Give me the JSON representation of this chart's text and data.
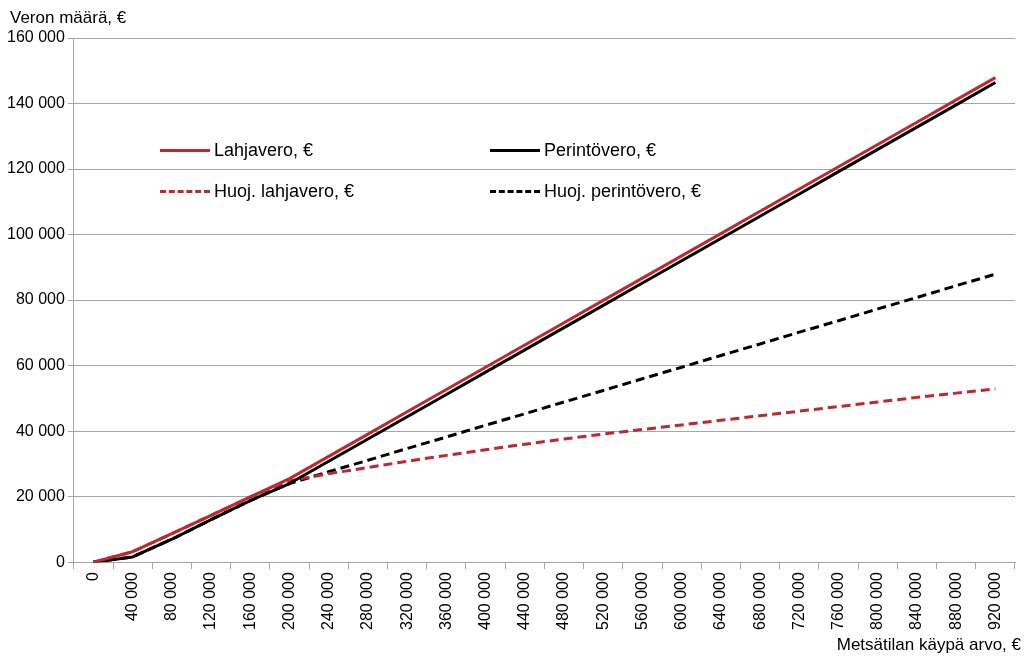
{
  "chart_data": {
    "type": "line",
    "xlabel": "Metsätilan käypä arvo, €",
    "ylabel": "Veron määrä, €",
    "categories": [
      "0",
      "40 000",
      "80 000",
      "120 000",
      "160 000",
      "200 000",
      "240 000",
      "280 000",
      "320 000",
      "360 000",
      "400 000",
      "440 000",
      "480 000",
      "520 000",
      "560 000",
      "600 000",
      "640 000",
      "680 000",
      "720 000",
      "760 000",
      "800 000",
      "840 000",
      "880 000",
      "920 000"
    ],
    "ylim": [
      0,
      160000
    ],
    "yticks": [
      {
        "value": 0,
        "label": "0"
      },
      {
        "value": 20000,
        "label": "20 000"
      },
      {
        "value": 40000,
        "label": "40 000"
      },
      {
        "value": 60000,
        "label": "60 000"
      },
      {
        "value": 80000,
        "label": "80 000"
      },
      {
        "value": 100000,
        "label": "100 000"
      },
      {
        "value": 120000,
        "label": "120 000"
      },
      {
        "value": 140000,
        "label": "140 000"
      },
      {
        "value": 160000,
        "label": "160 000"
      }
    ],
    "grid": "y",
    "legend": "top left",
    "marker": "none",
    "series": [
      {
        "name": "Lahjavero, €",
        "color": "#c0282d",
        "line_style": "solid",
        "values": [
          0,
          3200,
          8700,
          14300,
          19900,
          25500,
          32300,
          39100,
          45900,
          52700,
          59500,
          66300,
          73100,
          79900,
          86700,
          93500,
          100300,
          107100,
          113900,
          120700,
          127500,
          134300,
          141100,
          147900
        ]
      },
      {
        "name": "Perintövero, €",
        "color": "#000000",
        "line_style": "solid",
        "values": [
          0,
          1600,
          7000,
          13000,
          18800,
          24000,
          30800,
          37600,
          44400,
          51200,
          58000,
          64800,
          71600,
          78400,
          85200,
          92000,
          98800,
          105600,
          112400,
          119200,
          126000,
          132800,
          139600,
          146400
        ]
      },
      {
        "name": "Huoj. lahjavero, €",
        "color": "#c0282d",
        "line_style": "dashed",
        "values": [
          0,
          3200,
          8700,
          14300,
          19900,
          24800,
          27000,
          28900,
          30800,
          32600,
          34300,
          36000,
          37600,
          39100,
          40500,
          41900,
          43300,
          44700,
          46100,
          47500,
          48900,
          50300,
          51600,
          52900
        ]
      },
      {
        "name": "Huoj. perintövero, €",
        "color": "#000000",
        "line_style": "dashed",
        "values": [
          0,
          1600,
          7000,
          13000,
          18800,
          24000,
          27600,
          31100,
          34700,
          38200,
          41800,
          45300,
          48900,
          52400,
          56000,
          59500,
          63100,
          66600,
          70200,
          73700,
          77300,
          80800,
          84400,
          87900
        ]
      }
    ]
  }
}
